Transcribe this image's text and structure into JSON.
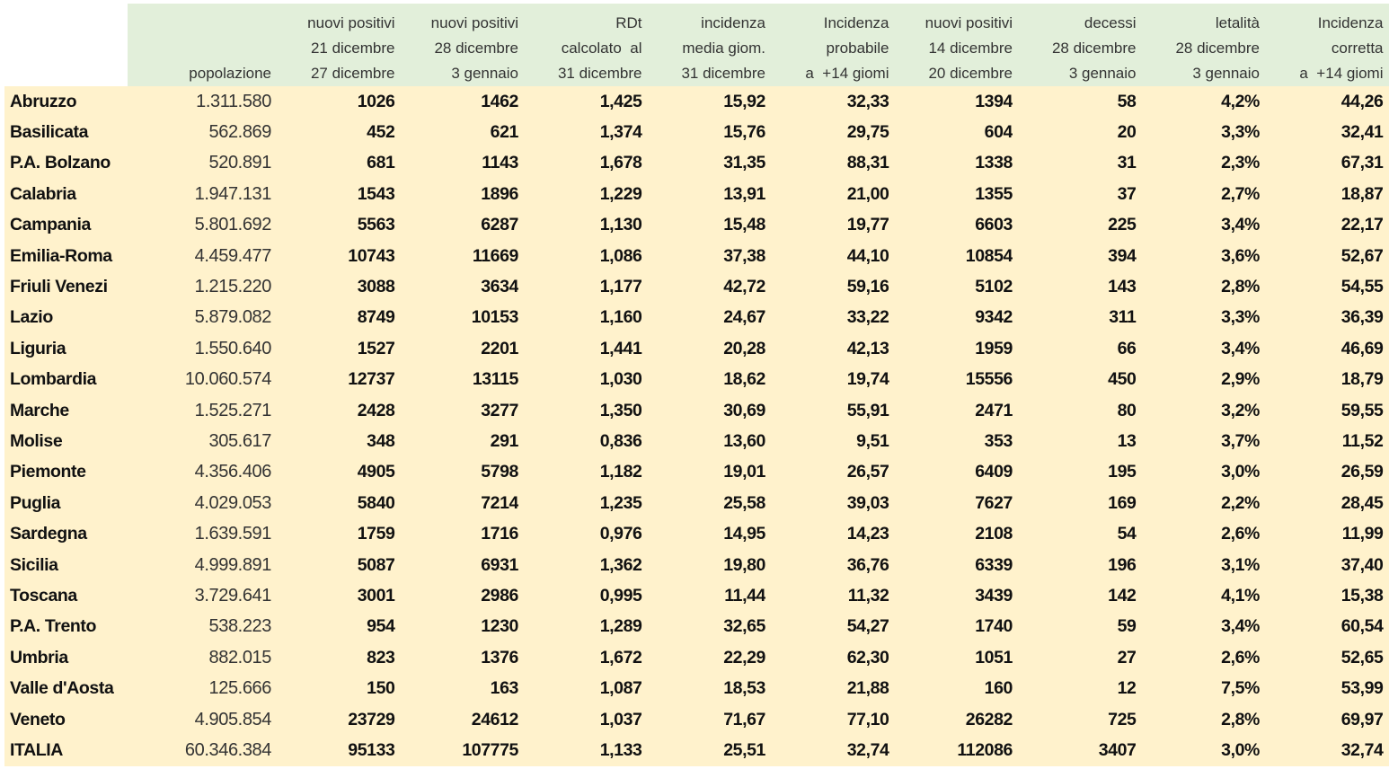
{
  "colors": {
    "header_bg": "#e2efda",
    "body_bg": "#fff2cc"
  },
  "headers": [
    [],
    [
      "popolazione"
    ],
    [
      "nuovi positivi",
      "21 dicembre",
      "27 dicembre"
    ],
    [
      "nuovi positivi",
      "28 dicembre",
      "3 gennaio"
    ],
    [
      "RDt",
      "calcolato  al",
      "31 dicembre"
    ],
    [
      "incidenza",
      "media giom.",
      "31 dicembre"
    ],
    [
      "Incidenza",
      "probabile",
      "a  +14 giomi"
    ],
    [
      "nuovi positivi",
      "14 dicembre",
      "20 dicembre"
    ],
    [
      "decessi",
      "28 dicembre",
      "3 gennaio"
    ],
    [
      "letalità",
      "28 dicembre",
      "3 gennaio"
    ],
    [
      "Incidenza",
      "corretta",
      "a  +14 giomi"
    ]
  ],
  "rows": [
    [
      "Abruzzo",
      "1.311.580",
      "1026",
      "1462",
      "1,425",
      "15,92",
      "32,33",
      "1394",
      "58",
      "4,2%",
      "44,26"
    ],
    [
      "Basilicata",
      "562.869",
      "452",
      "621",
      "1,374",
      "15,76",
      "29,75",
      "604",
      "20",
      "3,3%",
      "32,41"
    ],
    [
      "P.A. Bolzano",
      "520.891",
      "681",
      "1143",
      "1,678",
      "31,35",
      "88,31",
      "1338",
      "31",
      "2,3%",
      "67,31"
    ],
    [
      "Calabria",
      "1.947.131",
      "1543",
      "1896",
      "1,229",
      "13,91",
      "21,00",
      "1355",
      "37",
      "2,7%",
      "18,87"
    ],
    [
      "Campania",
      "5.801.692",
      "5563",
      "6287",
      "1,130",
      "15,48",
      "19,77",
      "6603",
      "225",
      "3,4%",
      "22,17"
    ],
    [
      "Emilia-Roma",
      "4.459.477",
      "10743",
      "11669",
      "1,086",
      "37,38",
      "44,10",
      "10854",
      "394",
      "3,6%",
      "52,67"
    ],
    [
      "Friuli Venezi",
      "1.215.220",
      "3088",
      "3634",
      "1,177",
      "42,72",
      "59,16",
      "5102",
      "143",
      "2,8%",
      "54,55"
    ],
    [
      "Lazio",
      "5.879.082",
      "8749",
      "10153",
      "1,160",
      "24,67",
      "33,22",
      "9342",
      "311",
      "3,3%",
      "36,39"
    ],
    [
      "Liguria",
      "1.550.640",
      "1527",
      "2201",
      "1,441",
      "20,28",
      "42,13",
      "1959",
      "66",
      "3,4%",
      "46,69"
    ],
    [
      "Lombardia",
      "10.060.574",
      "12737",
      "13115",
      "1,030",
      "18,62",
      "19,74",
      "15556",
      "450",
      "2,9%",
      "18,79"
    ],
    [
      "Marche",
      "1.525.271",
      "2428",
      "3277",
      "1,350",
      "30,69",
      "55,91",
      "2471",
      "80",
      "3,2%",
      "59,55"
    ],
    [
      "Molise",
      "305.617",
      "348",
      "291",
      "0,836",
      "13,60",
      "9,51",
      "353",
      "13",
      "3,7%",
      "11,52"
    ],
    [
      "Piemonte",
      "4.356.406",
      "4905",
      "5798",
      "1,182",
      "19,01",
      "26,57",
      "6409",
      "195",
      "3,0%",
      "26,59"
    ],
    [
      "Puglia",
      "4.029.053",
      "5840",
      "7214",
      "1,235",
      "25,58",
      "39,03",
      "7627",
      "169",
      "2,2%",
      "28,45"
    ],
    [
      "Sardegna",
      "1.639.591",
      "1759",
      "1716",
      "0,976",
      "14,95",
      "14,23",
      "2108",
      "54",
      "2,6%",
      "11,99"
    ],
    [
      "Sicilia",
      "4.999.891",
      "5087",
      "6931",
      "1,362",
      "19,80",
      "36,76",
      "6339",
      "196",
      "3,1%",
      "37,40"
    ],
    [
      "Toscana",
      "3.729.641",
      "3001",
      "2986",
      "0,995",
      "11,44",
      "11,32",
      "3439",
      "142",
      "4,1%",
      "15,38"
    ],
    [
      "P.A. Trento",
      "538.223",
      "954",
      "1230",
      "1,289",
      "32,65",
      "54,27",
      "1740",
      "59",
      "3,4%",
      "60,54"
    ],
    [
      "Umbria",
      "882.015",
      "823",
      "1376",
      "1,672",
      "22,29",
      "62,30",
      "1051",
      "27",
      "2,6%",
      "52,65"
    ],
    [
      "Valle d'Aosta",
      "125.666",
      "150",
      "163",
      "1,087",
      "18,53",
      "21,88",
      "160",
      "12",
      "7,5%",
      "53,99"
    ],
    [
      "Veneto",
      "4.905.854",
      "23729",
      "24612",
      "1,037",
      "71,67",
      "77,10",
      "26282",
      "725",
      "2,8%",
      "69,97"
    ],
    [
      "ITALIA",
      "60.346.384",
      "95133",
      "107775",
      "1,133",
      "25,51",
      "32,74",
      "112086",
      "3407",
      "3,0%",
      "32,74"
    ]
  ]
}
